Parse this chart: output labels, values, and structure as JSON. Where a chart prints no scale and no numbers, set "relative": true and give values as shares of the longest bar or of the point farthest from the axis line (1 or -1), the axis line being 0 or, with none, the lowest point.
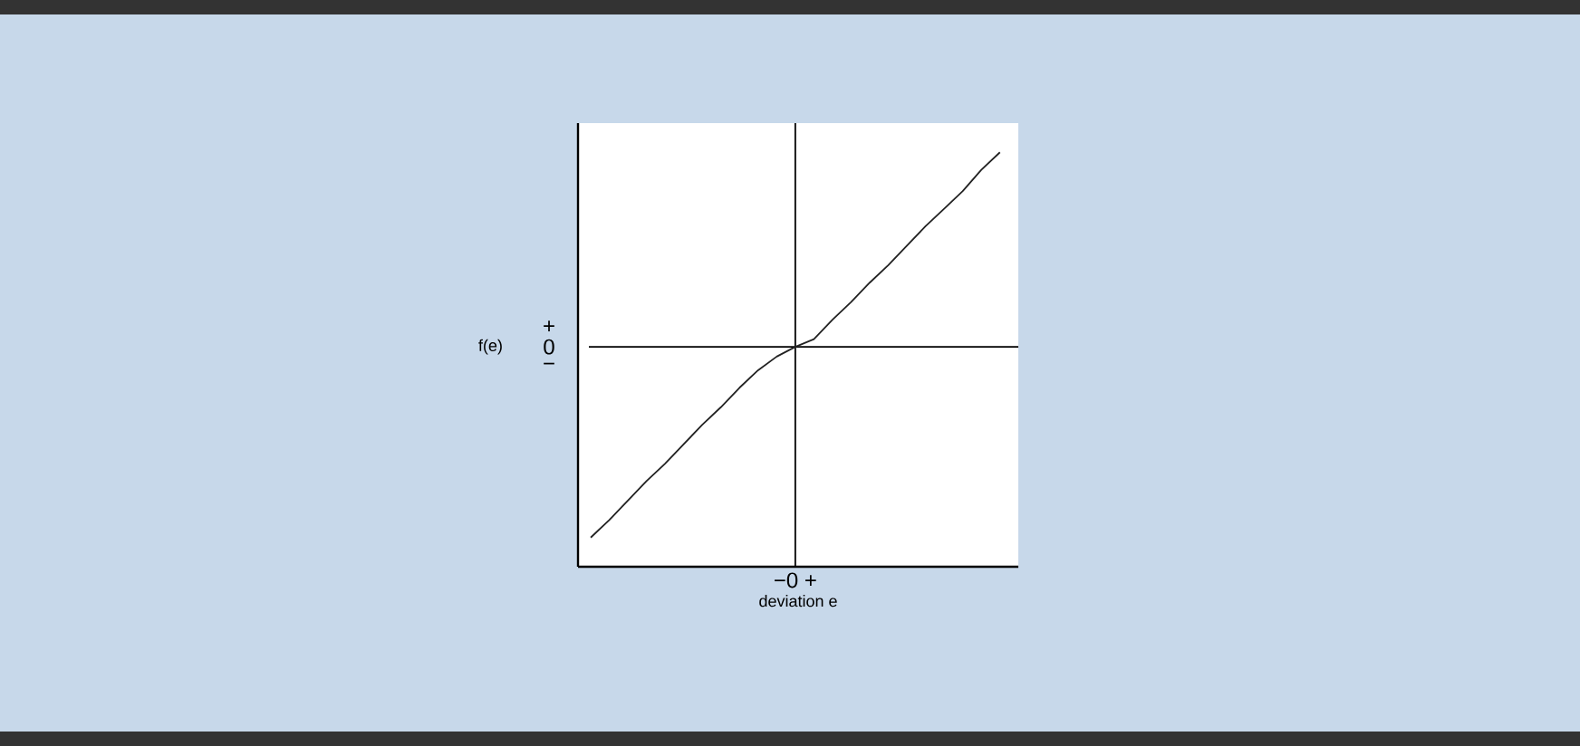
{
  "chart_data": {
    "type": "line",
    "relative": true,
    "xlabel": "deviation e",
    "annotations": [
      "f(e)",
      "+",
      "0",
      "−",
      "−0 +"
    ],
    "categories": [
      null,
      null,
      null,
      null,
      null,
      null,
      null,
      null,
      null,
      null,
      null,
      null,
      null,
      null,
      null,
      null,
      null,
      null,
      null,
      null,
      null,
      null,
      null
    ],
    "values": [
      -0.98,
      -0.89,
      -0.79,
      -0.69,
      -0.6,
      -0.5,
      -0.4,
      -0.31,
      -0.21,
      -0.12,
      -0.05,
      0,
      0.04,
      0.14,
      0.23,
      0.33,
      0.42,
      0.52,
      0.62,
      0.71,
      0.8,
      0.91,
      1
    ],
    "color": "#222222",
    "line_style": "solid"
  }
}
